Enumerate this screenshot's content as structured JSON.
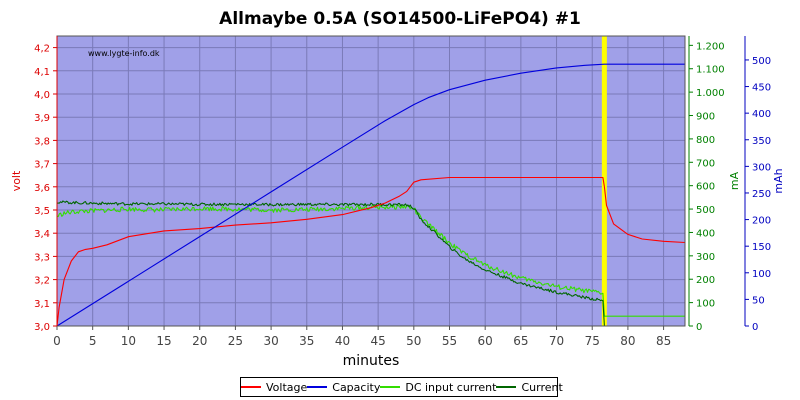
{
  "chart_data": {
    "type": "line",
    "title": "Allmaybe 0.5A (SO14500-LiFePO4) #1",
    "watermark": "www.lygte-info.dk",
    "xlabel": "minutes",
    "xlim": [
      0,
      88
    ],
    "x_ticks": [
      0,
      5,
      10,
      15,
      20,
      25,
      30,
      35,
      40,
      45,
      50,
      55,
      60,
      65,
      70,
      75,
      80,
      85
    ],
    "grid": true,
    "plot_background": "#a0a0e8",
    "legend_position": "bottom-center",
    "marker": {
      "x": 76.7,
      "color": "#ffff00"
    },
    "axes": {
      "volt": {
        "label": "volt",
        "color": "#dd0000",
        "side": "left",
        "lim": [
          3.0,
          4.25
        ],
        "ticks": [
          3.0,
          3.1,
          3.2,
          3.3,
          3.4,
          3.5,
          3.6,
          3.7,
          3.8,
          3.9,
          4.0,
          4.1,
          4.2
        ],
        "tick_labels": [
          "3,0",
          "3,1",
          "3,2",
          "3,3",
          "3,4",
          "3,5",
          "3,6",
          "3,7",
          "3,8",
          "3,9",
          "4,0",
          "4,1",
          "4,2"
        ]
      },
      "ma": {
        "label": "mA",
        "color": "#008000",
        "side": "right",
        "lim": [
          0,
          1240
        ],
        "ticks": [
          0,
          100,
          200,
          300,
          400,
          500,
          600,
          700,
          800,
          900,
          1000,
          1100,
          1200
        ],
        "tick_labels": [
          "0",
          "100",
          "200",
          "300",
          "400",
          "500",
          "600",
          "700",
          "800",
          "900",
          "1.000",
          "1.100",
          "1.200"
        ]
      },
      "mah": {
        "label": "mAh",
        "color": "#0000c0",
        "side": "right-outer",
        "lim": [
          0,
          545
        ],
        "ticks": [
          0,
          50,
          100,
          150,
          200,
          250,
          300,
          350,
          400,
          450,
          500
        ],
        "tick_labels": [
          "0",
          "50",
          "100",
          "150",
          "200",
          "250",
          "300",
          "350",
          "400",
          "450",
          "500"
        ]
      }
    },
    "series": [
      {
        "name": "Voltage",
        "axis": "volt",
        "color": "#ff0000",
        "noise": 0,
        "x": [
          0,
          0.3,
          1,
          2,
          3,
          4,
          5,
          7,
          10,
          15,
          20,
          25,
          30,
          35,
          40,
          44,
          46,
          48,
          49,
          50,
          51,
          55,
          60,
          65,
          70,
          75,
          76.5,
          76.7,
          77,
          78,
          80,
          82,
          85,
          88
        ],
        "y": [
          3.0,
          3.08,
          3.2,
          3.28,
          3.32,
          3.33,
          3.335,
          3.35,
          3.385,
          3.41,
          3.42,
          3.435,
          3.445,
          3.46,
          3.48,
          3.51,
          3.53,
          3.56,
          3.58,
          3.62,
          3.63,
          3.64,
          3.64,
          3.64,
          3.64,
          3.64,
          3.64,
          3.6,
          3.52,
          3.44,
          3.395,
          3.375,
          3.365,
          3.36
        ]
      },
      {
        "name": "Capacity",
        "axis": "mah",
        "color": "#0000dd",
        "noise": 0,
        "x": [
          0,
          10,
          20,
          30,
          40,
          46,
          50,
          52,
          55,
          60,
          65,
          70,
          74,
          76.7,
          88
        ],
        "y": [
          0,
          84,
          168,
          252,
          336,
          386,
          416,
          429,
          444,
          462,
          475,
          485,
          490,
          492,
          492
        ]
      },
      {
        "name": "DC input current",
        "axis": "ma",
        "color": "#33dd00",
        "noise": 10,
        "x": [
          0,
          1,
          3,
          5,
          10,
          15,
          20,
          25,
          30,
          35,
          40,
          45,
          49,
          50,
          51,
          53,
          55,
          57,
          60,
          65,
          70,
          74,
          76.5,
          76.7,
          77,
          88
        ],
        "y": [
          470,
          482,
          490,
          492,
          500,
          496,
          503,
          500,
          496,
          498,
          503,
          508,
          510,
          502,
          460,
          410,
          355,
          310,
          260,
          205,
          168,
          150,
          140,
          42,
          42,
          42
        ]
      },
      {
        "name": "Current",
        "axis": "ma",
        "color": "#006600",
        "noise": 6,
        "x": [
          0,
          5,
          10,
          15,
          20,
          25,
          30,
          35,
          40,
          45,
          49,
          50,
          51,
          53,
          55,
          57,
          60,
          65,
          70,
          74,
          76.5,
          76.7,
          77,
          88
        ],
        "y": [
          530,
          525,
          522,
          522,
          520,
          521,
          519,
          520,
          519,
          520,
          518,
          505,
          455,
          398,
          338,
          290,
          240,
          182,
          145,
          122,
          108,
          0,
          0,
          0
        ]
      }
    ]
  }
}
